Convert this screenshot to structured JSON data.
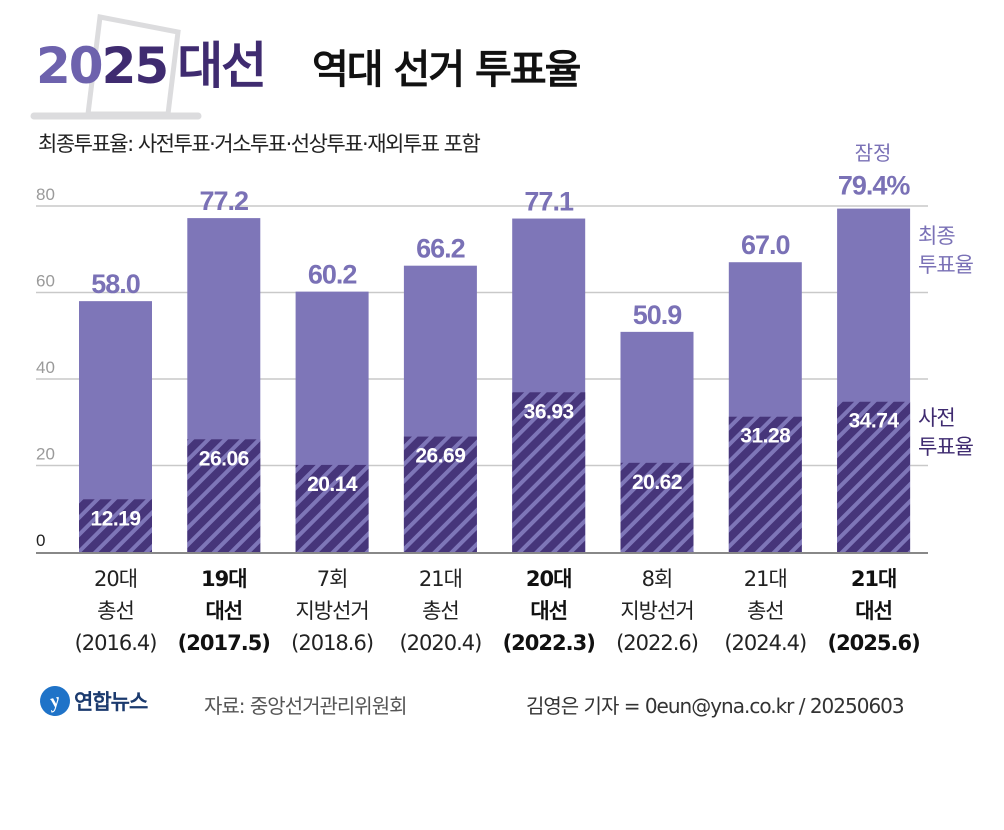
{
  "header": {
    "title_year_a": "20",
    "title_year_b": "25",
    "title_election": "대선",
    "title_rest": "역대 선거 투표율",
    "subtitle": "최종투표율: 사전투표·거소투표·선상투표·재외투표 포함"
  },
  "colors": {
    "final_bar": "#7e76b8",
    "early_bar_dark": "#46357a",
    "early_bar_stripe": "#7e76b8",
    "title_light": "#6d62ad",
    "title_dark": "#3f2b70",
    "gridline": "#cccccc"
  },
  "chart_data": {
    "type": "bar",
    "title": "역대 선거 투표율",
    "xlabel": "",
    "ylabel": "",
    "ylim": [
      0,
      80
    ],
    "yticks": [
      0,
      20,
      40,
      60,
      80
    ],
    "grid": true,
    "categories": [
      {
        "line1": "20대",
        "line2": "총선",
        "line3": "(2016.4)",
        "bold": false
      },
      {
        "line1": "19대",
        "line2": "대선",
        "line3": "(2017.5)",
        "bold": true
      },
      {
        "line1": "7회",
        "line2": "지방선거",
        "line3": "(2018.6)",
        "bold": false
      },
      {
        "line1": "21대",
        "line2": "총선",
        "line3": "(2020.4)",
        "bold": false
      },
      {
        "line1": "20대",
        "line2": "대선",
        "line3": "(2022.3)",
        "bold": true
      },
      {
        "line1": "8회",
        "line2": "지방선거",
        "line3": "(2022.6)",
        "bold": false
      },
      {
        "line1": "21대",
        "line2": "총선",
        "line3": "(2024.4)",
        "bold": false
      },
      {
        "line1": "21대",
        "line2": "대선",
        "line3": "(2025.6)",
        "bold": true
      }
    ],
    "series": [
      {
        "name": "최종 투표율",
        "values": [
          58.0,
          77.2,
          60.2,
          66.2,
          77.1,
          50.9,
          67.0,
          79.4
        ],
        "labels": [
          "58.0",
          "77.2",
          "60.2",
          "66.2",
          "77.1",
          "50.9",
          "67.0",
          "79.4%"
        ]
      },
      {
        "name": "사전 투표율",
        "values": [
          12.19,
          26.06,
          20.14,
          26.69,
          36.93,
          20.62,
          31.28,
          34.74
        ],
        "labels": [
          "12.19",
          "26.06",
          "20.14",
          "26.69",
          "36.93",
          "20.62",
          "31.28",
          "34.74"
        ]
      }
    ],
    "annotations": {
      "provisional": "잠정",
      "legend_final_line1": "최종",
      "legend_final_line2": "투표율",
      "legend_early_line1": "사전",
      "legend_early_line2": "투표율"
    },
    "legend_placement": "right"
  },
  "footer": {
    "logo_text": "연합뉴스",
    "source": "자료: 중앙선거관리위원회",
    "credit": "김영은 기자 = 0eun@yna.co.kr / 20250603"
  }
}
